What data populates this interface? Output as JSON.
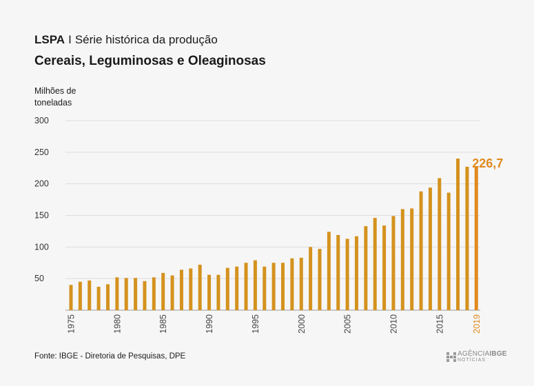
{
  "header": {
    "prefix": "LSPA",
    "separator": "I",
    "title": "Série histórica da produção",
    "subtitle": "Cereais, Leguminosas e Oleaginosas"
  },
  "unit_label": "Milhões de toneladas",
  "source": "Fonte: IBGE - Diretoria de Pesquisas, DPE",
  "logo": {
    "brand_part1": "AGÊNCIA",
    "brand_part2": "IBGE",
    "sub": "NOTÍCIAS"
  },
  "colors": {
    "bar": "#d4921e",
    "highlight": "#e08a1e",
    "grid": "#dcdcdc",
    "axis": "#555555"
  },
  "chart_data": {
    "type": "bar",
    "title": "Série histórica da produção",
    "subtitle": "Cereais, Leguminosas e Oleaginosas",
    "ylabel": "Milhões de toneladas",
    "ylim": [
      0,
      300
    ],
    "yticks": [
      50,
      100,
      150,
      200,
      250,
      300
    ],
    "xticks": [
      1975,
      1980,
      1985,
      1990,
      1995,
      2000,
      2005,
      2010,
      2015,
      2019
    ],
    "highlight_year": 2019,
    "annotation": "226,7",
    "grid": true,
    "x": [
      1975,
      1976,
      1977,
      1978,
      1979,
      1980,
      1981,
      1982,
      1983,
      1984,
      1985,
      1986,
      1987,
      1988,
      1989,
      1990,
      1991,
      1992,
      1993,
      1994,
      1995,
      1996,
      1997,
      1998,
      1999,
      2000,
      2001,
      2002,
      2003,
      2004,
      2005,
      2006,
      2007,
      2008,
      2009,
      2010,
      2011,
      2012,
      2013,
      2014,
      2015,
      2016,
      2017,
      2018,
      2019
    ],
    "values": [
      40,
      45,
      47,
      37,
      41,
      52,
      51,
      51,
      46,
      52,
      59,
      55,
      64,
      66,
      72,
      56,
      56,
      67,
      69,
      75,
      79,
      69,
      75,
      75,
      82,
      83,
      100,
      97,
      124,
      119,
      113,
      117,
      133,
      146,
      134,
      149,
      160,
      161,
      188,
      194,
      209,
      186,
      240,
      227,
      226.7
    ]
  }
}
